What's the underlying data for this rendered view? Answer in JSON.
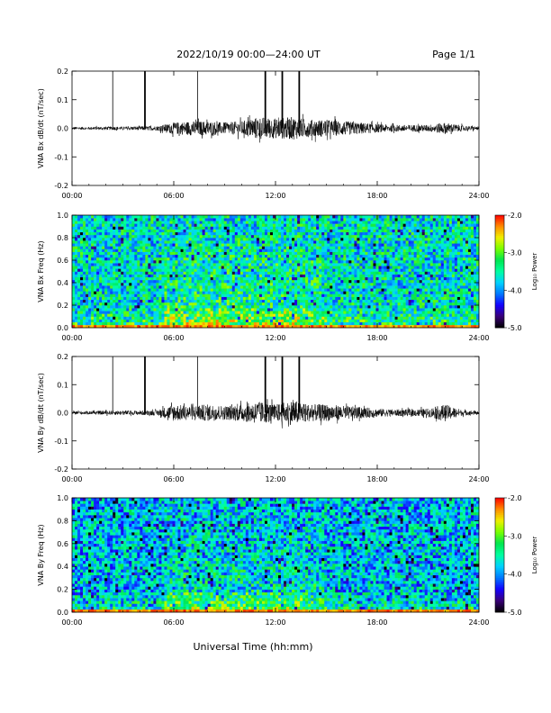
{
  "header": {
    "title": "2022/10/19  00:00—24:00 UT",
    "page": "Page 1/1"
  },
  "xlabel": "Universal Time (hh:mm)",
  "colorbar": {
    "label": "Log₁₀ Power",
    "range": [
      -5.0,
      -2.0
    ],
    "ticks": [
      "-2.0",
      "-3.0",
      "-4.0",
      "-5.0"
    ],
    "tick_values": [
      -2.0,
      -3.0,
      -4.0,
      -5.0
    ],
    "colormap": [
      "#000000",
      "#3a0078",
      "#1400ff",
      "#0078ff",
      "#00d2ff",
      "#00ffa0",
      "#00e650",
      "#78ff00",
      "#f0f000",
      "#ff8c00",
      "#ff0000"
    ]
  },
  "chart_data": [
    {
      "type": "line",
      "name": "bx-waveform",
      "ylabel": "VNA Bx dB/dt (nT/sec)",
      "xlim": [
        0,
        24
      ],
      "ylim": [
        -0.2,
        0.2
      ],
      "x_ticks": [
        "00:00",
        "06:00",
        "12:00",
        "18:00",
        "24:00"
      ],
      "y_ticks": [
        "0.2",
        "0.1",
        "0.0",
        "-0.1",
        "-0.2"
      ],
      "y_tick_values": [
        0.2,
        0.1,
        0.0,
        -0.1,
        -0.2
      ],
      "spikes_hours": [
        2.4,
        4.3,
        7.4,
        11.4,
        12.4,
        13.4
      ],
      "envelope": {
        "x": [
          0,
          1,
          2,
          3,
          4,
          5,
          6,
          7,
          8,
          9,
          10,
          11,
          12,
          13,
          14,
          15,
          16,
          17,
          18,
          19,
          20,
          21,
          22,
          23,
          24
        ],
        "amplitude": [
          0.005,
          0.005,
          0.006,
          0.006,
          0.007,
          0.008,
          0.02,
          0.025,
          0.025,
          0.02,
          0.025,
          0.04,
          0.035,
          0.04,
          0.03,
          0.03,
          0.025,
          0.02,
          0.015,
          0.012,
          0.012,
          0.012,
          0.02,
          0.01,
          0.006
        ]
      }
    },
    {
      "type": "heatmap",
      "name": "bx-spectrogram",
      "ylabel": "VNA Bx Freq (Hz)",
      "xlim": [
        0,
        24
      ],
      "ylim": [
        0,
        1.0
      ],
      "x_ticks": [
        "00:00",
        "06:00",
        "12:00",
        "18:00",
        "24:00"
      ],
      "y_ticks": [
        "1.0",
        "0.8",
        "0.6",
        "0.4",
        "0.2",
        "0.0"
      ],
      "y_tick_values": [
        1.0,
        0.8,
        0.6,
        0.4,
        0.2,
        0.0
      ],
      "log_power_range": [
        -5.0,
        -2.0
      ],
      "background_log_power": -3.6,
      "low_freq_band": {
        "freq_max": 0.03,
        "log_power": -2.3
      }
    },
    {
      "type": "line",
      "name": "by-waveform",
      "ylabel": "VNA By dB/dt (nT/sec)",
      "xlim": [
        0,
        24
      ],
      "ylim": [
        -0.2,
        0.2
      ],
      "x_ticks": [
        "00:00",
        "06:00",
        "12:00",
        "18:00",
        "24:00"
      ],
      "y_ticks": [
        "0.2",
        "0.1",
        "0.0",
        "-0.1",
        "-0.2"
      ],
      "y_tick_values": [
        0.2,
        0.1,
        0.0,
        -0.1,
        -0.2
      ],
      "spikes_hours": [
        2.4,
        4.3,
        7.4,
        11.4,
        12.4,
        13.4
      ],
      "envelope": {
        "x": [
          0,
          1,
          2,
          3,
          4,
          5,
          6,
          7,
          8,
          9,
          10,
          11,
          12,
          13,
          14,
          15,
          16,
          17,
          18,
          19,
          20,
          21,
          22,
          23,
          24
        ],
        "amplitude": [
          0.006,
          0.006,
          0.007,
          0.008,
          0.008,
          0.01,
          0.03,
          0.025,
          0.03,
          0.025,
          0.03,
          0.04,
          0.03,
          0.045,
          0.03,
          0.03,
          0.025,
          0.02,
          0.015,
          0.012,
          0.012,
          0.015,
          0.03,
          0.01,
          0.007
        ]
      }
    },
    {
      "type": "heatmap",
      "name": "by-spectrogram",
      "ylabel": "VNA By Freq (Hz)",
      "xlim": [
        0,
        24
      ],
      "ylim": [
        0,
        1.0
      ],
      "x_ticks": [
        "00:00",
        "06:00",
        "12:00",
        "18:00",
        "24:00"
      ],
      "y_ticks": [
        "1.0",
        "0.8",
        "0.6",
        "0.4",
        "0.2",
        "0.0"
      ],
      "y_tick_values": [
        1.0,
        0.8,
        0.6,
        0.4,
        0.2,
        0.0
      ],
      "log_power_range": [
        -5.0,
        -2.0
      ],
      "background_log_power": -3.8,
      "low_freq_band": {
        "freq_max": 0.03,
        "log_power": -2.3
      }
    }
  ]
}
